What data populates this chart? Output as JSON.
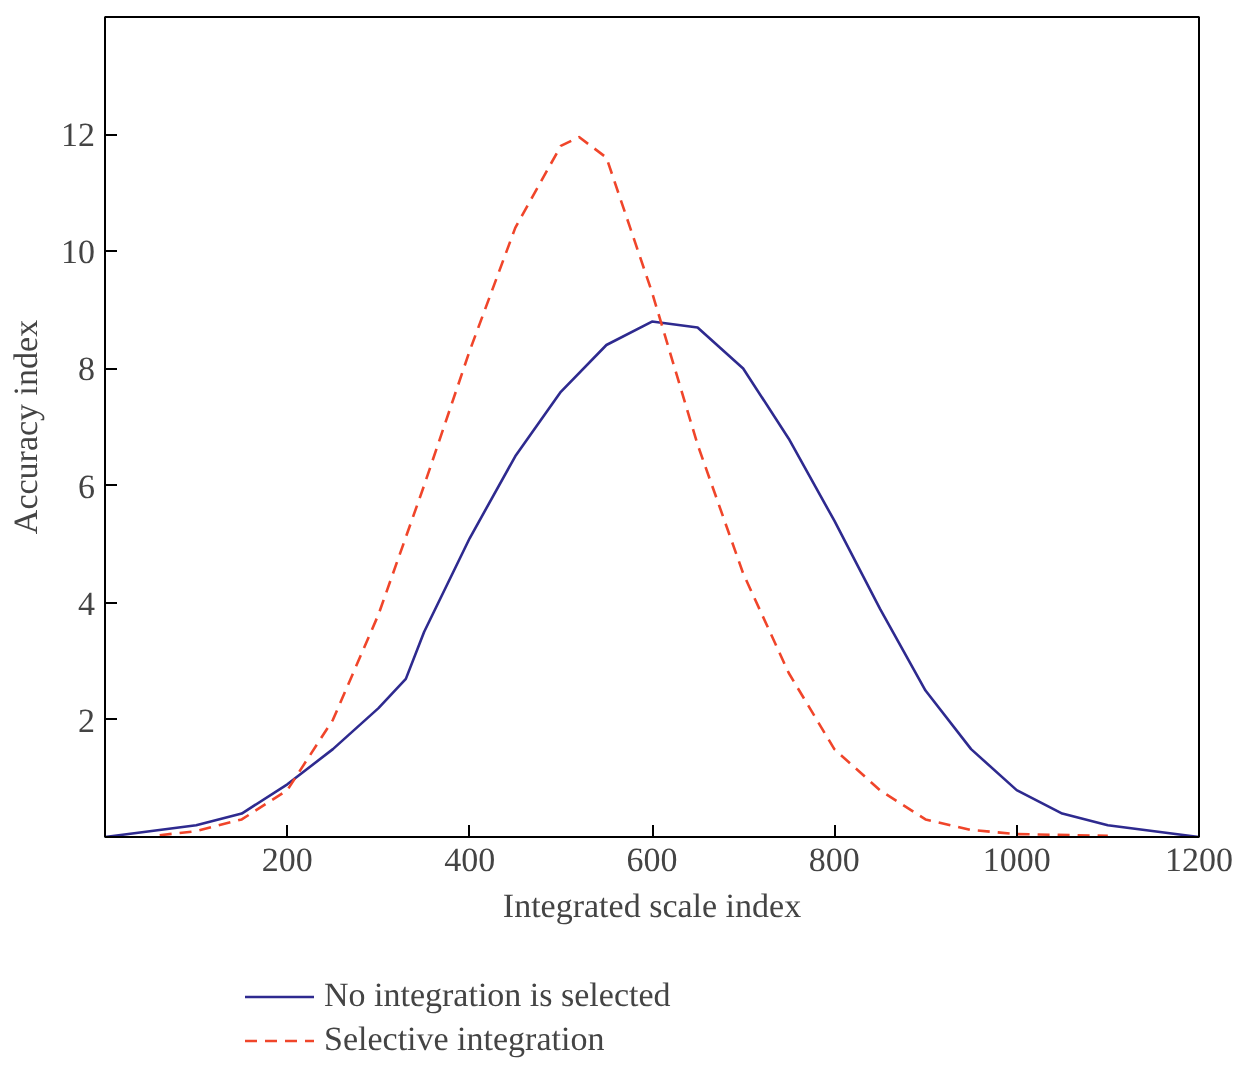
{
  "chart_data": {
    "type": "line",
    "xlabel": "Integrated scale index",
    "ylabel": "Accuracy index",
    "xlim": [
      0,
      1200
    ],
    "ylim": [
      0,
      14
    ],
    "xticks": [
      200,
      400,
      600,
      800,
      1000,
      1200
    ],
    "yticks": [
      2,
      4,
      6,
      8,
      10,
      12
    ],
    "grid": false,
    "legend": "bottom",
    "marker": "none",
    "series": [
      {
        "name": "No integration is selected",
        "color": "#2e2a8f",
        "line_style": "solid",
        "x": [
          0,
          100,
          150,
          200,
          250,
          300,
          330,
          350,
          400,
          450,
          500,
          550,
          600,
          650,
          700,
          750,
          800,
          850,
          900,
          950,
          1000,
          1050,
          1100,
          1200
        ],
        "values": [
          0,
          0.2,
          0.4,
          0.9,
          1.5,
          2.2,
          2.7,
          3.5,
          5.1,
          6.5,
          7.6,
          8.4,
          8.8,
          8.7,
          8.0,
          6.8,
          5.4,
          3.9,
          2.5,
          1.5,
          0.8,
          0.4,
          0.2,
          0
        ]
      },
      {
        "name": "Selective integration",
        "color": "#f0452a",
        "line_style": "dashed",
        "x": [
          60,
          100,
          150,
          200,
          250,
          300,
          350,
          400,
          450,
          500,
          520,
          550,
          600,
          650,
          700,
          750,
          800,
          850,
          900,
          950,
          1000,
          1100
        ],
        "values": [
          0.03,
          0.1,
          0.3,
          0.8,
          2.0,
          3.8,
          6.0,
          8.3,
          10.4,
          11.8,
          11.95,
          11.6,
          9.3,
          6.7,
          4.5,
          2.8,
          1.5,
          0.8,
          0.3,
          0.12,
          0.05,
          0.02
        ]
      }
    ]
  }
}
